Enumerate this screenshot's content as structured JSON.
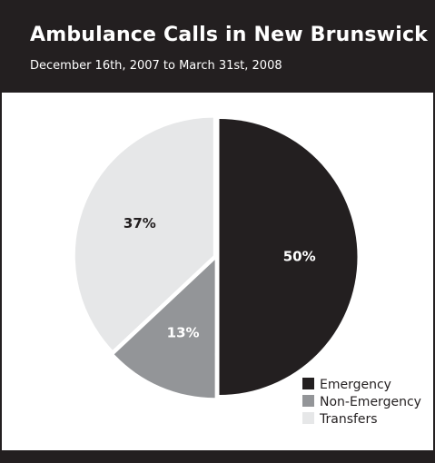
{
  "chart_data": {
    "type": "pie",
    "title": "Ambulance Calls in New Brunswick",
    "subtitle": "December 16th, 2007 to March 31st, 2008",
    "slices": [
      {
        "name": "Emergency",
        "value": 50,
        "label": "50%",
        "color": "#231f20",
        "label_color": "#ffffff"
      },
      {
        "name": "Non-Emergency",
        "value": 13,
        "label": "13%",
        "color": "#939598",
        "label_color": "#ffffff"
      },
      {
        "name": "Transfers",
        "value": 37,
        "label": "37%",
        "color": "#e6e7e8",
        "label_color": "#231f20"
      }
    ],
    "legend_position": "bottom-right"
  },
  "colors": {
    "background": "#ffffff",
    "header": "#231f20",
    "header_text": "#ffffff"
  }
}
